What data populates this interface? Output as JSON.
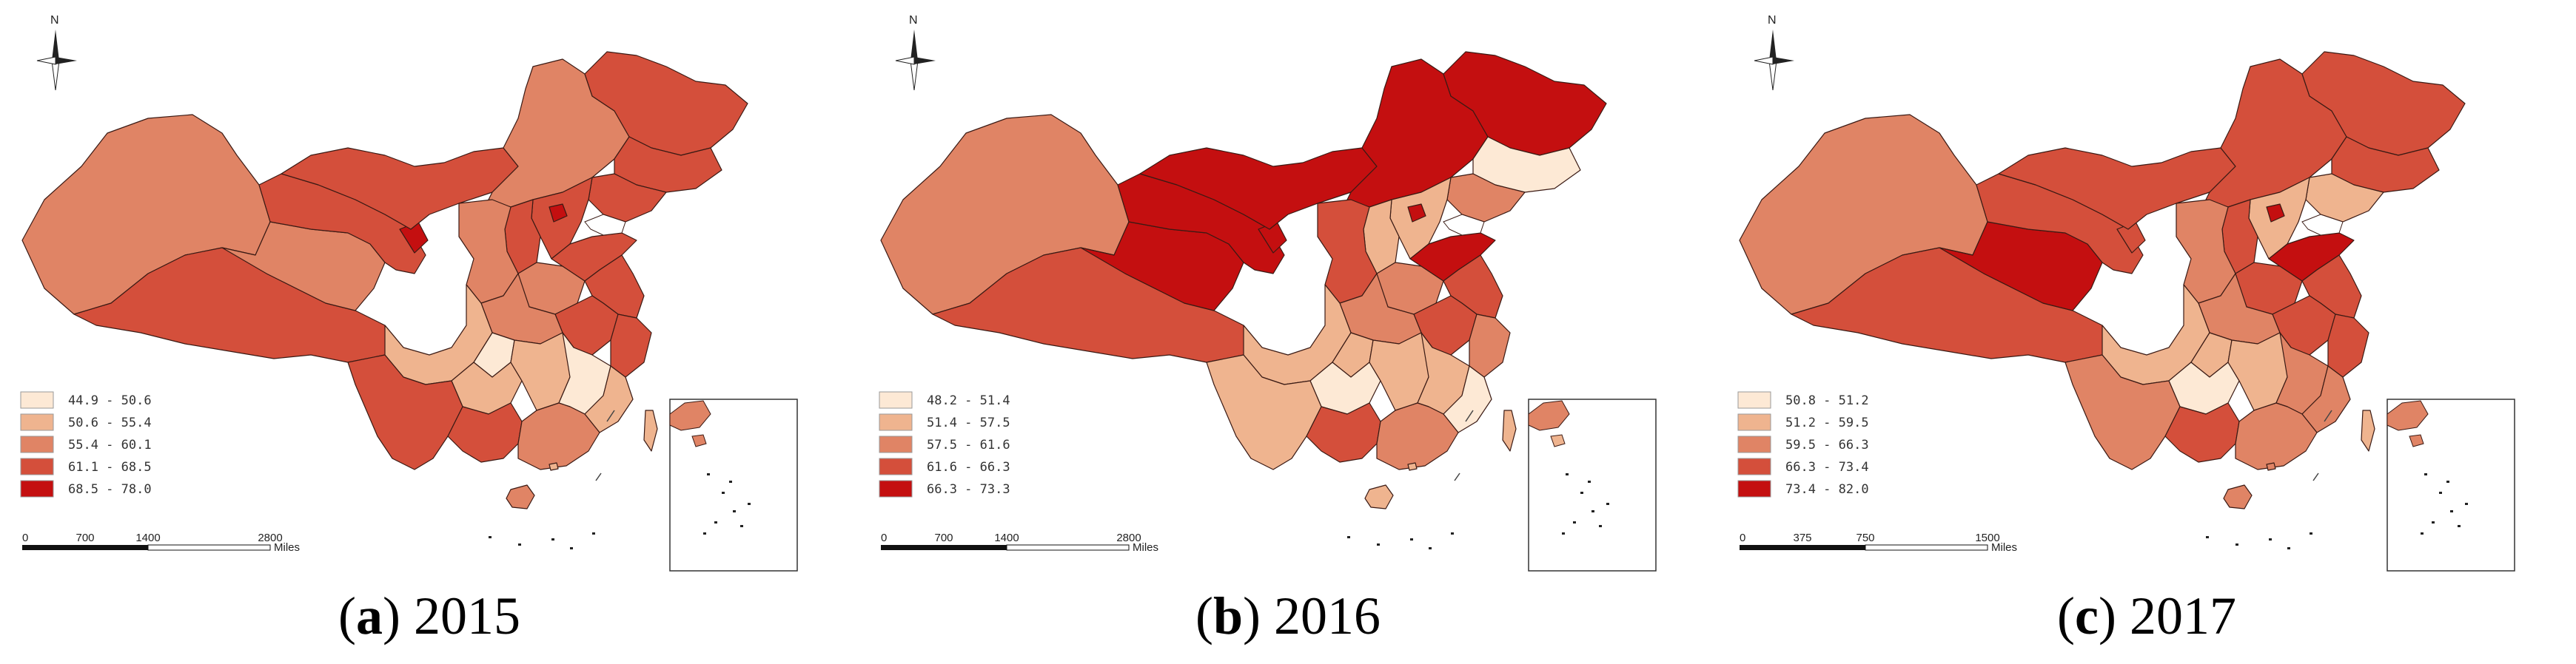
{
  "colors": {
    "class1": "#fde9d5",
    "class2": "#efb48f",
    "class3": "#e08465",
    "class4": "#d44f3b",
    "class5": "#c40f10",
    "outline": "#3a1a14"
  },
  "north_label": "N",
  "scale_unit": "Miles",
  "panels": [
    {
      "caption_letter": "a",
      "caption_year": "2015",
      "legend": [
        "44.9  -  50.6",
        "50.6  -  55.4",
        "55.4  -  60.1",
        "61.1  -  68.5",
        "68.5  -  78.0"
      ],
      "scale_ticks": [
        "0",
        "700",
        "1400",
        "2800"
      ],
      "region_classes": [
        3,
        4,
        3,
        4,
        5,
        4,
        3,
        4,
        4,
        4,
        4,
        5,
        4,
        3,
        3,
        4,
        4,
        4,
        3,
        4,
        2,
        1,
        2,
        2,
        1,
        2,
        4,
        4,
        3,
        3,
        2,
        2
      ]
    },
    {
      "caption_letter": "b",
      "caption_year": "2016",
      "legend": [
        "48.2  -  51.4",
        "51.4  -  57.5",
        "57.5  -  61.6",
        "61.6  -  66.3",
        "66.3  -  73.3"
      ],
      "scale_ticks": [
        "0",
        "700",
        "1400",
        "2800"
      ],
      "region_classes": [
        3,
        4,
        5,
        5,
        5,
        5,
        5,
        5,
        1,
        3,
        2,
        5,
        2,
        4,
        3,
        5,
        4,
        4,
        3,
        3,
        2,
        2,
        1,
        2,
        2,
        1,
        2,
        4,
        3,
        2,
        2,
        2
      ]
    },
    {
      "caption_letter": "c",
      "caption_year": "2017",
      "legend": [
        "50.8  -  51.2",
        "51.2  -  59.5",
        "59.5  -  66.3",
        "66.3  -  73.4",
        "73.4  -  82.0"
      ],
      "scale_ticks": [
        "0",
        "375",
        "750",
        "1500"
      ],
      "region_classes": [
        3,
        4,
        5,
        4,
        4,
        4,
        4,
        4,
        4,
        2,
        2,
        5,
        4,
        3,
        4,
        5,
        4,
        4,
        3,
        4,
        2,
        2,
        1,
        2,
        3,
        3,
        3,
        4,
        3,
        3,
        2,
        3
      ]
    }
  ]
}
